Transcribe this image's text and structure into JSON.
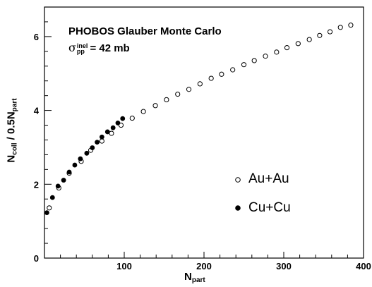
{
  "chart_data": {
    "type": "scatter",
    "title": "PHOBOS Glauber Monte Carlo",
    "annotation": {
      "symbol": "σ",
      "superscript": "inel",
      "subscript": "pp",
      "text": "= 42 mb"
    },
    "xlabel": {
      "main": "N",
      "sub": "part"
    },
    "ylabel": {
      "main1": "N",
      "sub1": "coll",
      "main2": " / 0.5N",
      "sub2": "part"
    },
    "xlim": [
      0,
      400
    ],
    "ylim": [
      0,
      6.8
    ],
    "xticks": [
      100,
      200,
      300,
      400
    ],
    "yticks": [
      0,
      2,
      4,
      6
    ],
    "legend_position": "center-right",
    "series": [
      {
        "name": "Au+Au",
        "marker": "open-circle",
        "x": [
          6,
          18,
          31,
          46,
          58,
          72,
          84,
          96,
          110,
          124,
          139,
          153,
          167,
          181,
          195,
          209,
          222,
          236,
          250,
          263,
          277,
          291,
          304,
          318,
          332,
          345,
          358,
          371,
          384
        ],
        "y": [
          1.36,
          1.9,
          2.3,
          2.62,
          2.92,
          3.17,
          3.38,
          3.6,
          3.79,
          3.97,
          4.13,
          4.29,
          4.44,
          4.57,
          4.72,
          4.87,
          4.98,
          5.1,
          5.24,
          5.35,
          5.47,
          5.58,
          5.7,
          5.81,
          5.92,
          6.03,
          6.13,
          6.25,
          6.31
        ]
      },
      {
        "name": "Cu+Cu",
        "marker": "filled-circle",
        "x": [
          3,
          10,
          17,
          24,
          31,
          38,
          45,
          53,
          60,
          66,
          72,
          79,
          86,
          92,
          98
        ],
        "y": [
          1.23,
          1.64,
          1.95,
          2.11,
          2.33,
          2.52,
          2.69,
          2.84,
          2.99,
          3.14,
          3.28,
          3.42,
          3.53,
          3.66,
          3.78
        ]
      }
    ]
  }
}
